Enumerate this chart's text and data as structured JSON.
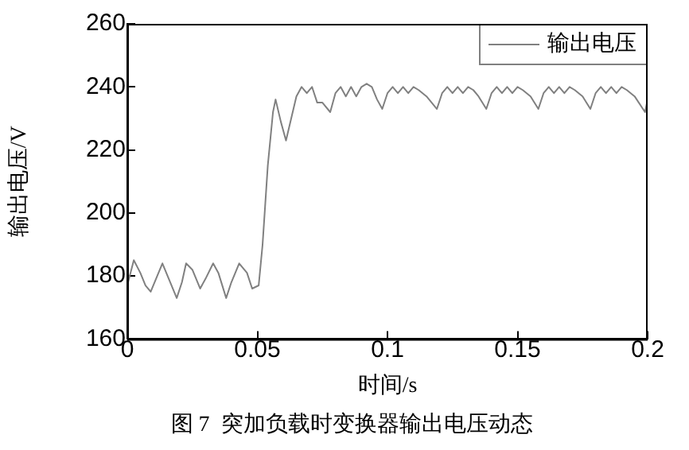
{
  "chart_data": {
    "type": "line",
    "xlabel": "时间/s",
    "ylabel": "输出电压/V",
    "annotations": [
      "图 7  突加负载时变换器输出电压动态"
    ],
    "xlim": [
      0,
      0.2
    ],
    "xticks": [
      0,
      0.05,
      0.1,
      0.15,
      0.2
    ],
    "ylim": [
      160,
      260
    ],
    "yticks": [
      160,
      180,
      200,
      220,
      240,
      260
    ],
    "grid": false,
    "legend": "top right",
    "marker": "none",
    "line_style": "solid",
    "series": [
      {
        "name": "输出电压",
        "color": "#808080",
        "x": [
          0,
          0.0025,
          0.005,
          0.007,
          0.009,
          0.0115,
          0.0135,
          0.016,
          0.019,
          0.021,
          0.0226,
          0.025,
          0.028,
          0.03,
          0.033,
          0.035,
          0.038,
          0.04,
          0.043,
          0.046,
          0.048,
          0.0505,
          0.052,
          0.054,
          0.056,
          0.057,
          0.059,
          0.061,
          0.063,
          0.065,
          0.067,
          0.069,
          0.071,
          0.073,
          0.075,
          0.078,
          0.08,
          0.082,
          0.084,
          0.086,
          0.088,
          0.09,
          0.092,
          0.094,
          0.096,
          0.098,
          0.1,
          0.102,
          0.104,
          0.106,
          0.108,
          0.11,
          0.112,
          0.115,
          0.119,
          0.121,
          0.123,
          0.125,
          0.127,
          0.129,
          0.131,
          0.133,
          0.135,
          0.138,
          0.14,
          0.142,
          0.144,
          0.146,
          0.148,
          0.15,
          0.152,
          0.155,
          0.158,
          0.16,
          0.162,
          0.164,
          0.166,
          0.168,
          0.17,
          0.172,
          0.175,
          0.178,
          0.18,
          0.182,
          0.184,
          0.186,
          0.188,
          0.19,
          0.192,
          0.195,
          0.199,
          0.2
        ],
        "values": [
          177,
          185,
          181,
          177,
          175,
          180,
          184,
          179,
          173,
          178,
          184,
          182,
          176,
          179,
          184,
          181,
          173,
          178,
          184,
          181,
          176,
          177,
          190,
          215,
          232,
          236,
          229,
          223,
          230,
          237,
          240,
          238,
          240,
          235,
          235,
          232,
          238,
          240,
          237,
          240,
          237,
          240,
          241,
          240,
          236,
          233,
          238,
          240,
          238,
          240,
          238,
          240,
          239,
          237,
          233,
          238,
          240,
          238,
          240,
          238,
          240,
          239,
          237,
          233,
          238,
          240,
          238,
          240,
          238,
          240,
          239,
          237,
          233,
          238,
          240,
          238,
          240,
          238,
          240,
          239,
          237,
          233,
          238,
          240,
          238,
          240,
          238,
          240,
          239,
          237,
          232,
          236
        ]
      }
    ]
  }
}
